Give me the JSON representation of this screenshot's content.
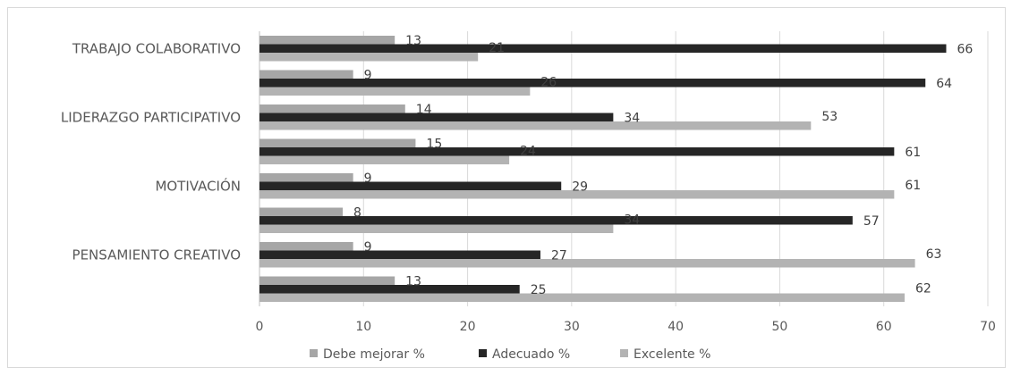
{
  "chart_data": {
    "type": "bar",
    "orientation": "horizontal",
    "xlim": [
      0,
      70
    ],
    "xticks": [
      0,
      10,
      20,
      30,
      40,
      50,
      60,
      70
    ],
    "grid": true,
    "legend_position": "bottom",
    "category_labels": [
      "PENSAMIENTO CREATIVO",
      "MOTIVACIÓN",
      "LIDERAZGO PARTICIPATIVO",
      "TRABAJO COLABORATIVO"
    ],
    "groups": [
      {
        "label": "",
        "values": [
          13,
          25,
          62
        ]
      },
      {
        "label": "PENSAMIENTO CREATIVO",
        "values": [
          9,
          27,
          63
        ]
      },
      {
        "label": "",
        "values": [
          8,
          57,
          34
        ]
      },
      {
        "label": "MOTIVACIÓN",
        "values": [
          9,
          29,
          61
        ]
      },
      {
        "label": "",
        "values": [
          15,
          61,
          24
        ]
      },
      {
        "label": "LIDERAZGO PARTICIPATIVO",
        "values": [
          14,
          34,
          53
        ]
      },
      {
        "label": "",
        "values": [
          9,
          64,
          26
        ]
      },
      {
        "label": "TRABAJO COLABORATIVO",
        "values": [
          13,
          66,
          21
        ]
      }
    ],
    "series": [
      {
        "name": "Debe mejorar %",
        "color": "#a6a6a6"
      },
      {
        "name": "Adecuado %",
        "color": "#262626"
      },
      {
        "name": "Excelente %",
        "color": "#b3b3b3"
      }
    ]
  }
}
